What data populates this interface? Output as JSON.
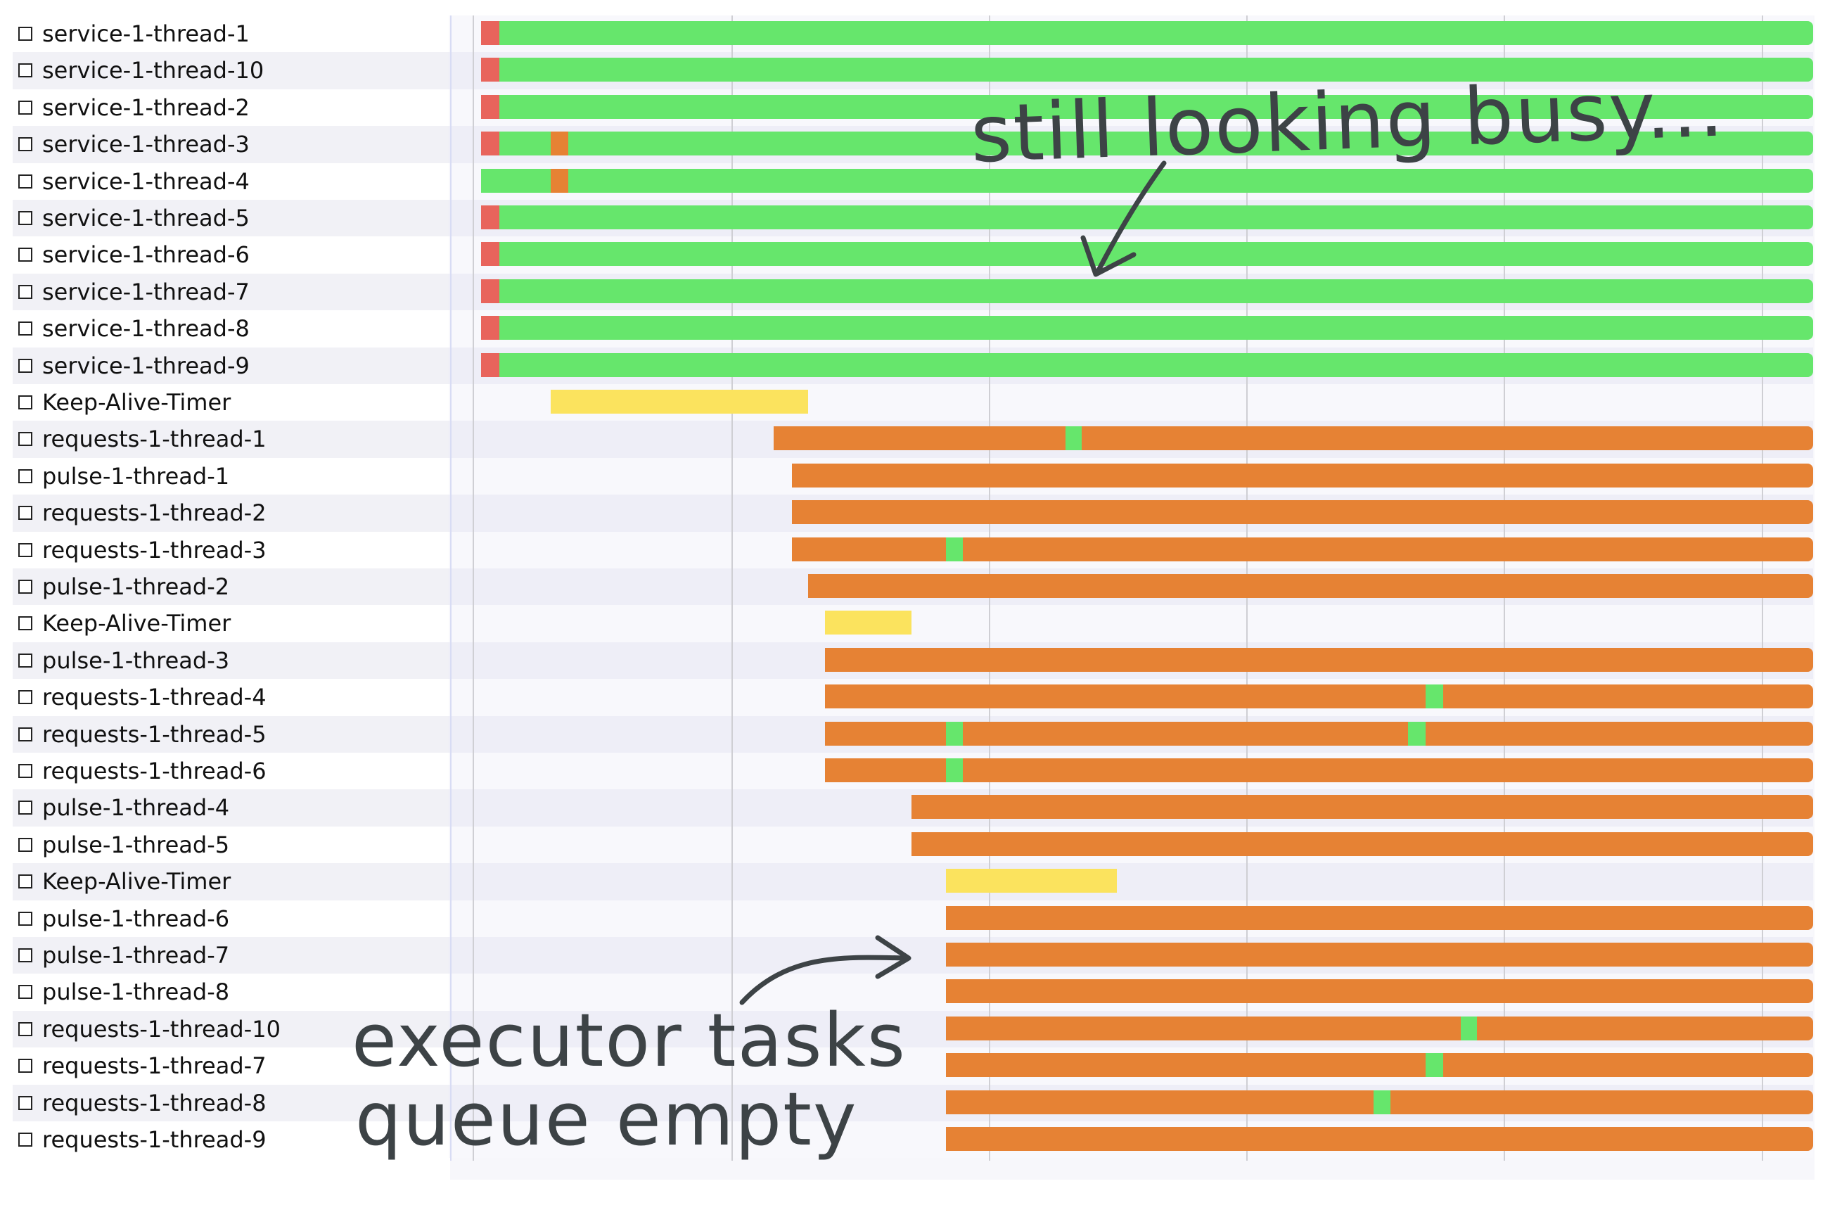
{
  "threads": [
    {
      "label": "service-1-thread-1",
      "segments": [
        {
          "start": 0,
          "end": 0.0137,
          "state": "red"
        },
        {
          "start": 0.0137,
          "end": 1,
          "state": "green"
        }
      ]
    },
    {
      "label": "service-1-thread-10",
      "segments": [
        {
          "start": 0,
          "end": 0.0137,
          "state": "red"
        },
        {
          "start": 0.0137,
          "end": 1,
          "state": "green"
        }
      ]
    },
    {
      "label": "service-1-thread-2",
      "segments": [
        {
          "start": 0,
          "end": 0.0137,
          "state": "red"
        },
        {
          "start": 0.0137,
          "end": 1,
          "state": "green"
        }
      ]
    },
    {
      "label": "service-1-thread-3",
      "segments": [
        {
          "start": 0,
          "end": 0.0137,
          "state": "red"
        },
        {
          "start": 0.0137,
          "end": 0.0525,
          "state": "green"
        },
        {
          "start": 0.0525,
          "end": 0.0653,
          "state": "orange"
        },
        {
          "start": 0.0653,
          "end": 1,
          "state": "green"
        }
      ]
    },
    {
      "label": "service-1-thread-4",
      "segments": [
        {
          "start": 0,
          "end": 0.0525,
          "state": "green"
        },
        {
          "start": 0.0525,
          "end": 0.0653,
          "state": "orange"
        },
        {
          "start": 0.0653,
          "end": 1,
          "state": "green"
        }
      ]
    },
    {
      "label": "service-1-thread-5",
      "segments": [
        {
          "start": 0,
          "end": 0.0137,
          "state": "red"
        },
        {
          "start": 0.0137,
          "end": 1,
          "state": "green"
        }
      ]
    },
    {
      "label": "service-1-thread-6",
      "segments": [
        {
          "start": 0,
          "end": 0.0137,
          "state": "red"
        },
        {
          "start": 0.0137,
          "end": 1,
          "state": "green"
        }
      ]
    },
    {
      "label": "service-1-thread-7",
      "segments": [
        {
          "start": 0,
          "end": 0.0137,
          "state": "red"
        },
        {
          "start": 0.0137,
          "end": 1,
          "state": "green"
        }
      ]
    },
    {
      "label": "service-1-thread-8",
      "segments": [
        {
          "start": 0,
          "end": 0.0137,
          "state": "red"
        },
        {
          "start": 0.0137,
          "end": 1,
          "state": "green"
        }
      ]
    },
    {
      "label": "service-1-thread-9",
      "segments": [
        {
          "start": 0,
          "end": 0.0137,
          "state": "red"
        },
        {
          "start": 0.0137,
          "end": 1,
          "state": "green"
        }
      ]
    },
    {
      "label": "Keep-Alive-Timer",
      "segments": [
        {
          "start": 0.0525,
          "end": 0.2453,
          "state": "yellow"
        }
      ]
    },
    {
      "label": "requests-1-thread-1",
      "segments": [
        {
          "start": 0.2198,
          "end": 0.4389,
          "state": "orange"
        },
        {
          "start": 0.4389,
          "end": 0.4508,
          "state": "green"
        },
        {
          "start": 0.4508,
          "end": 1,
          "state": "orange"
        }
      ]
    },
    {
      "label": "pulse-1-thread-1",
      "segments": [
        {
          "start": 0.2336,
          "end": 1,
          "state": "orange"
        }
      ]
    },
    {
      "label": "requests-1-thread-2",
      "segments": [
        {
          "start": 0.2336,
          "end": 1,
          "state": "orange"
        }
      ]
    },
    {
      "label": "requests-1-thread-3",
      "segments": [
        {
          "start": 0.2336,
          "end": 0.3488,
          "state": "orange"
        },
        {
          "start": 0.3488,
          "end": 0.3616,
          "state": "green"
        },
        {
          "start": 0.3616,
          "end": 1,
          "state": "orange"
        }
      ]
    },
    {
      "label": "pulse-1-thread-2",
      "segments": [
        {
          "start": 0.2453,
          "end": 1,
          "state": "orange"
        }
      ]
    },
    {
      "label": "Keep-Alive-Timer",
      "segments": [
        {
          "start": 0.2583,
          "end": 0.3229,
          "state": "yellow"
        }
      ]
    },
    {
      "label": "pulse-1-thread-3",
      "segments": [
        {
          "start": 0.2583,
          "end": 1,
          "state": "orange"
        }
      ]
    },
    {
      "label": "requests-1-thread-4",
      "segments": [
        {
          "start": 0.2583,
          "end": 0.7089,
          "state": "orange"
        },
        {
          "start": 0.7089,
          "end": 0.7223,
          "state": "green"
        },
        {
          "start": 0.7223,
          "end": 1,
          "state": "orange"
        }
      ]
    },
    {
      "label": "requests-1-thread-5",
      "segments": [
        {
          "start": 0.2583,
          "end": 0.3488,
          "state": "orange"
        },
        {
          "start": 0.3488,
          "end": 0.3616,
          "state": "green"
        },
        {
          "start": 0.3616,
          "end": 0.6961,
          "state": "orange"
        },
        {
          "start": 0.6961,
          "end": 0.7089,
          "state": "green"
        },
        {
          "start": 0.7089,
          "end": 1,
          "state": "orange"
        }
      ]
    },
    {
      "label": "requests-1-thread-6",
      "segments": [
        {
          "start": 0.2583,
          "end": 0.3488,
          "state": "orange"
        },
        {
          "start": 0.3488,
          "end": 0.3616,
          "state": "green"
        },
        {
          "start": 0.3616,
          "end": 1,
          "state": "orange"
        }
      ]
    },
    {
      "label": "pulse-1-thread-4",
      "segments": [
        {
          "start": 0.3229,
          "end": 1,
          "state": "orange"
        }
      ]
    },
    {
      "label": "pulse-1-thread-5",
      "segments": [
        {
          "start": 0.3229,
          "end": 1,
          "state": "orange"
        }
      ]
    },
    {
      "label": "Keep-Alive-Timer",
      "segments": [
        {
          "start": 0.3488,
          "end": 0.4772,
          "state": "yellow"
        }
      ]
    },
    {
      "label": "pulse-1-thread-6",
      "segments": [
        {
          "start": 0.3488,
          "end": 1,
          "state": "orange"
        }
      ]
    },
    {
      "label": "pulse-1-thread-7",
      "segments": [
        {
          "start": 0.3488,
          "end": 1,
          "state": "orange"
        }
      ]
    },
    {
      "label": "pulse-1-thread-8",
      "segments": [
        {
          "start": 0.3488,
          "end": 1,
          "state": "orange"
        }
      ]
    },
    {
      "label": "requests-1-thread-10",
      "segments": [
        {
          "start": 0.3488,
          "end": 0.7353,
          "state": "orange"
        },
        {
          "start": 0.7353,
          "end": 0.7478,
          "state": "green"
        },
        {
          "start": 0.7478,
          "end": 1,
          "state": "orange"
        }
      ]
    },
    {
      "label": "requests-1-thread-7",
      "segments": [
        {
          "start": 0.3488,
          "end": 0.7089,
          "state": "orange"
        },
        {
          "start": 0.7089,
          "end": 0.7223,
          "state": "green"
        },
        {
          "start": 0.7223,
          "end": 1,
          "state": "orange"
        }
      ]
    },
    {
      "label": "requests-1-thread-8",
      "segments": [
        {
          "start": 0.3488,
          "end": 0.6699,
          "state": "orange"
        },
        {
          "start": 0.6699,
          "end": 0.6828,
          "state": "green"
        },
        {
          "start": 0.6828,
          "end": 1,
          "state": "orange"
        }
      ]
    },
    {
      "label": "requests-1-thread-9",
      "segments": [
        {
          "start": 0.3488,
          "end": 1,
          "state": "orange"
        }
      ]
    }
  ],
  "state_colors": {
    "red": "#e8645c",
    "green": "#66e66c",
    "orange": "#e68234",
    "yellow": "#fbe35e"
  },
  "row_colors": {
    "even": "#ffffff",
    "odd": "#f1f1f6",
    "timeline_even": "#f8f8fc",
    "timeline_odd": "#eeeef7"
  },
  "annotations": {
    "busy": "still looking busy...",
    "queue_line1": "executor tasks",
    "queue_line2": "queue empty"
  }
}
